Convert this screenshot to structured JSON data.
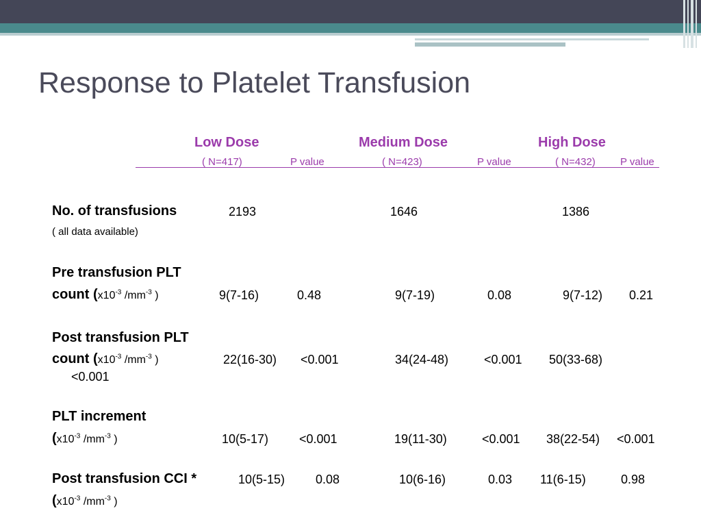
{
  "slide": {
    "title": "Response to Platelet Transfusion"
  },
  "header": {
    "low": "Low Dose",
    "medium": "Medium Dose",
    "high": "High Dose",
    "low_n": "( N=417)",
    "low_p": "P value",
    "medium_n": "( N=423)",
    "medium_p": "P value",
    "high_n": "( N=432)",
    "high_p": "P value"
  },
  "rows": {
    "transfusions": {
      "label": "No. of transfusions",
      "note": "( all data available)",
      "low": "2193",
      "medium": "1646",
      "high": "1386"
    },
    "pre": {
      "label_line1": "Pre transfusion PLT",
      "label_word": "count",
      "unit_open": "(",
      "low": "9(7-16)",
      "low_p": "0.48",
      "medium": "9(7-19)",
      "medium_p": "0.08",
      "high": "9(7-12)",
      "high_p": "0.21"
    },
    "post": {
      "label_line1": "Post transfusion PLT",
      "label_word": "count",
      "unit_open": "(",
      "low": "22(16-30)",
      "low_p": "<0.001",
      "medium": "34(24-48)",
      "medium_p": "<0.001",
      "high": "50(33-68)",
      "high_p": "<0.001"
    },
    "increment": {
      "label": "PLT increment",
      "unit_open": "(",
      "low": "10(5-17)",
      "low_p": "<0.001",
      "medium": "19(11-30)",
      "medium_p": "<0.001",
      "high": "38(22-54)",
      "high_p": "<0.001"
    },
    "cci": {
      "label": "Post transfusion CCI *",
      "unit_open": "(",
      "low": "10(5-15)",
      "low_p": "0.08",
      "medium": "10(6-16)",
      "medium_p": "0.03",
      "high": "11(6-15)",
      "high_p": "0.98"
    }
  },
  "units": {
    "x10": "x10",
    "exp": "-3",
    "mm": " /mm",
    "close": " )"
  }
}
